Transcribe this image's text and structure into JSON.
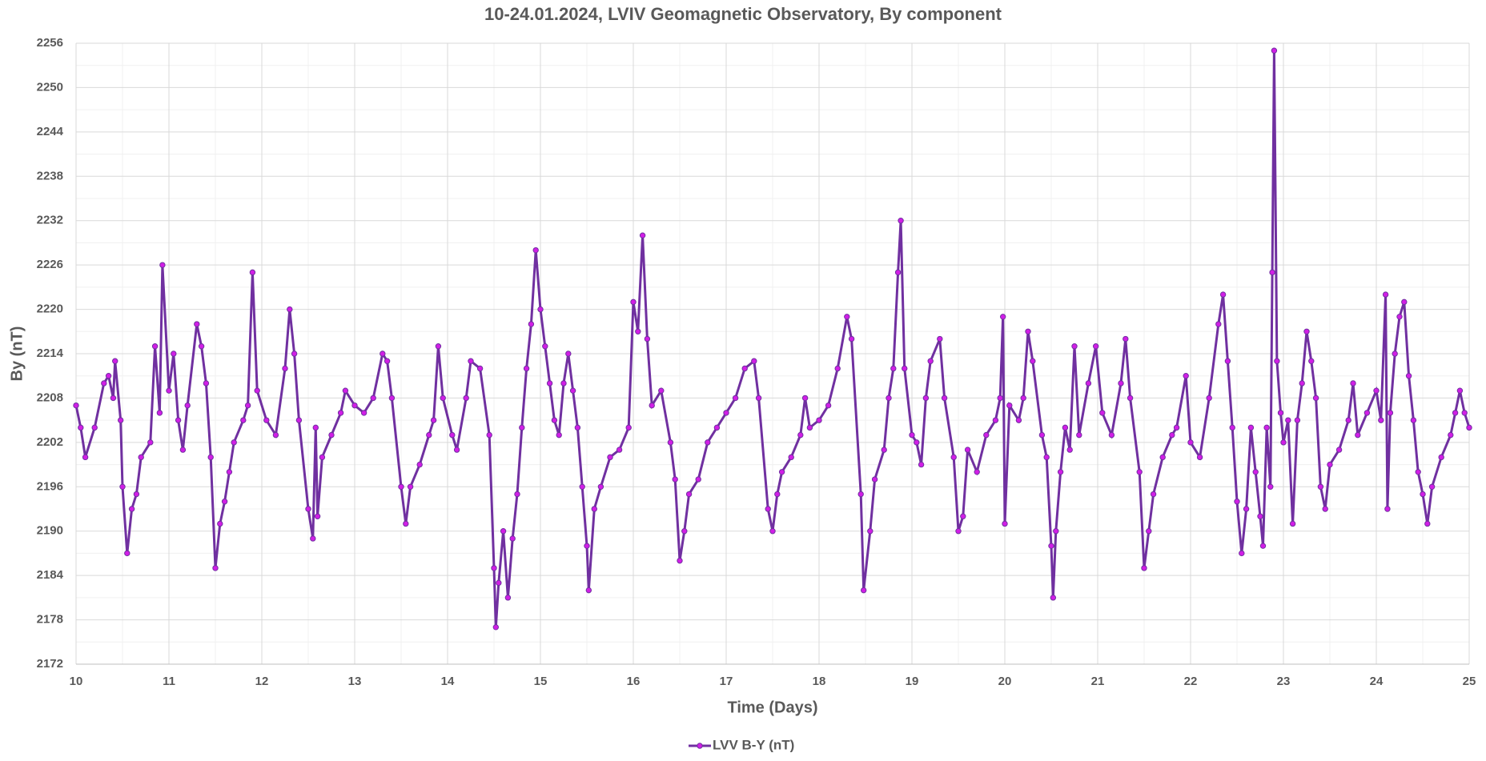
{
  "chart_data": {
    "type": "line",
    "title": "10-24.01.2024, LVIV Geomagnetic Observatory,  By component",
    "x_label": "Time (Days)",
    "y_label": "By (nT)",
    "xlim": [
      10,
      25
    ],
    "xticks": [
      10,
      11,
      12,
      13,
      14,
      15,
      16,
      17,
      18,
      19,
      20,
      21,
      22,
      23,
      24,
      25
    ],
    "ylim": [
      2172,
      2256
    ],
    "yticks": [
      2172,
      2178,
      2184,
      2190,
      2196,
      2202,
      2208,
      2214,
      2220,
      2226,
      2232,
      2238,
      2244,
      2250,
      2256
    ],
    "grid": true,
    "minor_grid": true,
    "legend": "bottom",
    "x": [
      10.0,
      10.05,
      10.1,
      10.2,
      10.3,
      10.35,
      10.4,
      10.42,
      10.48,
      10.5,
      10.55,
      10.6,
      10.65,
      10.7,
      10.8,
      10.85,
      10.9,
      10.93,
      11.0,
      11.05,
      11.1,
      11.15,
      11.2,
      11.3,
      11.35,
      11.4,
      11.45,
      11.5,
      11.55,
      11.6,
      11.65,
      11.7,
      11.8,
      11.85,
      11.9,
      11.95,
      12.05,
      12.15,
      12.25,
      12.3,
      12.35,
      12.4,
      12.5,
      12.55,
      12.58,
      12.6,
      12.65,
      12.75,
      12.85,
      12.9,
      13.0,
      13.1,
      13.2,
      13.3,
      13.35,
      13.4,
      13.5,
      13.55,
      13.6,
      13.7,
      13.8,
      13.85,
      13.9,
      13.95,
      14.05,
      14.1,
      14.2,
      14.25,
      14.35,
      14.45,
      14.5,
      14.52,
      14.55,
      14.6,
      14.65,
      14.7,
      14.75,
      14.8,
      14.85,
      14.9,
      14.95,
      15.0,
      15.05,
      15.1,
      15.15,
      15.2,
      15.25,
      15.3,
      15.35,
      15.4,
      15.45,
      15.5,
      15.52,
      15.58,
      15.65,
      15.75,
      15.85,
      15.95,
      16.0,
      16.05,
      16.1,
      16.15,
      16.2,
      16.3,
      16.4,
      16.45,
      16.5,
      16.55,
      16.6,
      16.7,
      16.8,
      16.9,
      17.0,
      17.1,
      17.2,
      17.3,
      17.35,
      17.45,
      17.5,
      17.55,
      17.6,
      17.7,
      17.8,
      17.85,
      17.9,
      18.0,
      18.1,
      18.2,
      18.3,
      18.35,
      18.45,
      18.48,
      18.55,
      18.6,
      18.7,
      18.75,
      18.8,
      18.85,
      18.88,
      18.92,
      19.0,
      19.05,
      19.1,
      19.15,
      19.2,
      19.3,
      19.35,
      19.45,
      19.5,
      19.55,
      19.6,
      19.7,
      19.8,
      19.9,
      19.95,
      19.98,
      20.0,
      20.05,
      20.15,
      20.2,
      20.25,
      20.3,
      20.4,
      20.45,
      20.5,
      20.52,
      20.55,
      20.6,
      20.65,
      20.7,
      20.75,
      20.8,
      20.9,
      20.98,
      21.05,
      21.15,
      21.25,
      21.3,
      21.35,
      21.45,
      21.5,
      21.55,
      21.6,
      21.7,
      21.8,
      21.85,
      21.95,
      22.0,
      22.1,
      22.2,
      22.3,
      22.35,
      22.4,
      22.45,
      22.5,
      22.55,
      22.6,
      22.65,
      22.7,
      22.75,
      22.78,
      22.82,
      22.86,
      22.88,
      22.9,
      22.93,
      22.97,
      23.0,
      23.05,
      23.1,
      23.15,
      23.2,
      23.25,
      23.3,
      23.35,
      23.4,
      23.45,
      23.5,
      23.6,
      23.7,
      23.75,
      23.8,
      23.9,
      24.0,
      24.05,
      24.1,
      24.12,
      24.15,
      24.2,
      24.25,
      24.3,
      24.35,
      24.4,
      24.45,
      24.5,
      24.55,
      24.6,
      24.7,
      24.8,
      24.85,
      24.9,
      24.95,
      25.0
    ],
    "series": [
      {
        "name": "LVV B-Y (nT)",
        "color": "#7030a0",
        "marker_color": "#d21ee6",
        "values": [
          2207,
          2204,
          2200,
          2204,
          2210,
          2211,
          2208,
          2213,
          2205,
          2196,
          2187,
          2193,
          2195,
          2200,
          2202,
          2215,
          2206,
          2226,
          2209,
          2214,
          2205,
          2201,
          2207,
          2218,
          2215,
          2210,
          2200,
          2185,
          2191,
          2194,
          2198,
          2202,
          2205,
          2207,
          2225,
          2209,
          2205,
          2203,
          2212,
          2220,
          2214,
          2205,
          2193,
          2189,
          2204,
          2192,
          2200,
          2203,
          2206,
          2209,
          2207,
          2206,
          2208,
          2214,
          2213,
          2208,
          2196,
          2191,
          2196,
          2199,
          2203,
          2205,
          2215,
          2208,
          2203,
          2201,
          2208,
          2213,
          2212,
          2203,
          2185,
          2177,
          2183,
          2190,
          2181,
          2189,
          2195,
          2204,
          2212,
          2218,
          2228,
          2220,
          2215,
          2210,
          2205,
          2203,
          2210,
          2214,
          2209,
          2204,
          2196,
          2188,
          2182,
          2193,
          2196,
          2200,
          2201,
          2204,
          2221,
          2217,
          2230,
          2216,
          2207,
          2209,
          2202,
          2197,
          2186,
          2190,
          2195,
          2197,
          2202,
          2204,
          2206,
          2208,
          2212,
          2213,
          2208,
          2193,
          2190,
          2195,
          2198,
          2200,
          2203,
          2208,
          2204,
          2205,
          2207,
          2212,
          2219,
          2216,
          2195,
          2182,
          2190,
          2197,
          2201,
          2208,
          2212,
          2225,
          2232,
          2212,
          2203,
          2202,
          2199,
          2208,
          2213,
          2216,
          2208,
          2200,
          2190,
          2192,
          2201,
          2198,
          2203,
          2205,
          2208,
          2219,
          2191,
          2207,
          2205,
          2208,
          2217,
          2213,
          2203,
          2200,
          2188,
          2181,
          2190,
          2198,
          2204,
          2201,
          2215,
          2203,
          2210,
          2215,
          2206,
          2203,
          2210,
          2216,
          2208,
          2198,
          2185,
          2190,
          2195,
          2200,
          2203,
          2204,
          2211,
          2202,
          2200,
          2208,
          2218,
          2222,
          2213,
          2204,
          2194,
          2187,
          2193,
          2204,
          2198,
          2192,
          2188,
          2204,
          2196,
          2225,
          2255,
          2213,
          2206,
          2202,
          2205,
          2191,
          2205,
          2210,
          2217,
          2213,
          2208,
          2196,
          2193,
          2199,
          2201,
          2205,
          2210,
          2203,
          2206,
          2209,
          2205,
          2222,
          2193,
          2206,
          2214,
          2219,
          2221,
          2211,
          2205,
          2198,
          2195,
          2191,
          2196,
          2200,
          2203,
          2206,
          2209,
          2206,
          2204
        ]
      }
    ]
  }
}
